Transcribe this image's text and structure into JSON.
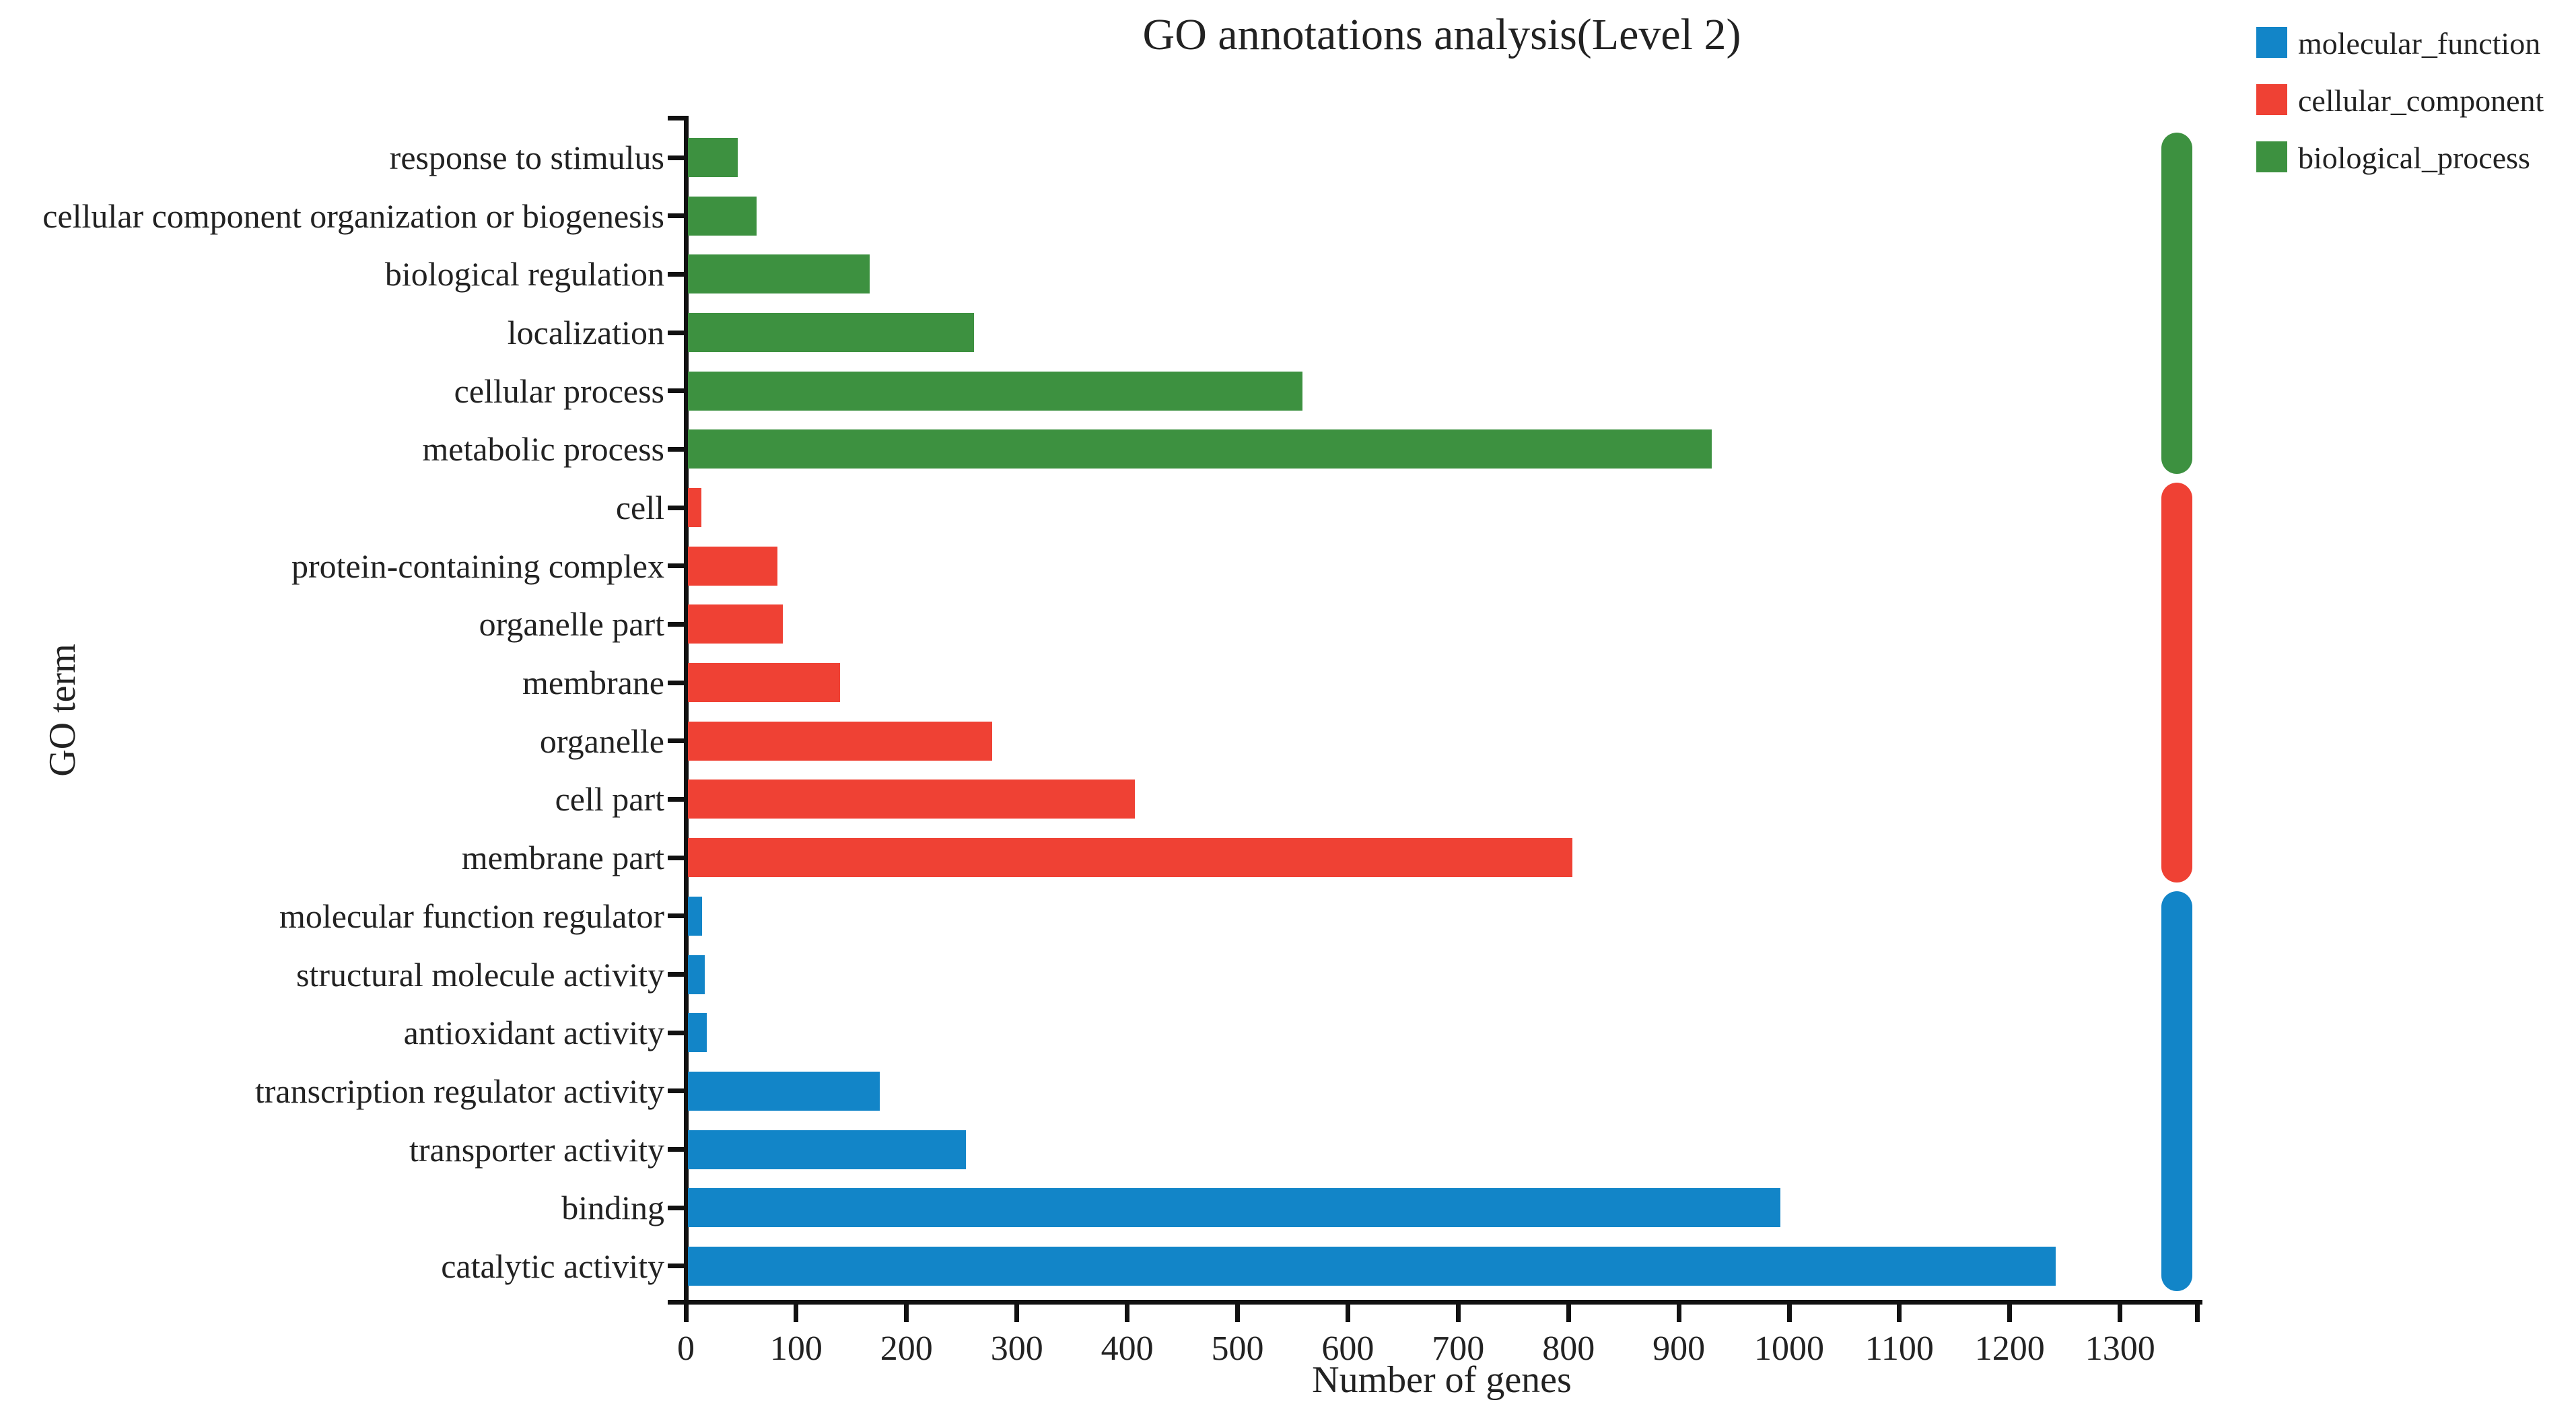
{
  "chart_data": {
    "type": "bar",
    "orientation": "horizontal",
    "title": "GO annotations analysis(Level 2)",
    "xlabel": "Number of genes",
    "ylabel": "GO term",
    "xlim": [
      0,
      1370
    ],
    "xticks": [
      0,
      100,
      200,
      300,
      400,
      500,
      600,
      700,
      800,
      900,
      1000,
      1100,
      1200,
      1300
    ],
    "grid": false,
    "legend_position": "top-right",
    "categories_top_to_bottom": [
      {
        "label": "response to stimulus",
        "value": 45,
        "group": "biological_process"
      },
      {
        "label": "cellular component organization or biogenesis",
        "value": 62,
        "group": "biological_process"
      },
      {
        "label": "biological regulation",
        "value": 165,
        "group": "biological_process"
      },
      {
        "label": "localization",
        "value": 259,
        "group": "biological_process"
      },
      {
        "label": "cellular process",
        "value": 557,
        "group": "biological_process"
      },
      {
        "label": "metabolic process",
        "value": 928,
        "group": "biological_process"
      },
      {
        "label": "cell",
        "value": 12,
        "group": "cellular_component"
      },
      {
        "label": "protein-containing complex",
        "value": 81,
        "group": "cellular_component"
      },
      {
        "label": "organelle part",
        "value": 86,
        "group": "cellular_component"
      },
      {
        "label": "membrane",
        "value": 138,
        "group": "cellular_component"
      },
      {
        "label": "organelle",
        "value": 276,
        "group": "cellular_component"
      },
      {
        "label": "cell part",
        "value": 405,
        "group": "cellular_component"
      },
      {
        "label": "membrane part",
        "value": 802,
        "group": "cellular_component"
      },
      {
        "label": "molecular function regulator",
        "value": 13,
        "group": "molecular_function"
      },
      {
        "label": "structural molecule activity",
        "value": 15,
        "group": "molecular_function"
      },
      {
        "label": "antioxidant activity",
        "value": 17,
        "group": "molecular_function"
      },
      {
        "label": "transcription regulator activity",
        "value": 174,
        "group": "molecular_function"
      },
      {
        "label": "transporter activity",
        "value": 252,
        "group": "molecular_function"
      },
      {
        "label": "binding",
        "value": 990,
        "group": "molecular_function"
      },
      {
        "label": "catalytic activity",
        "value": 1240,
        "group": "molecular_function"
      }
    ],
    "groups": {
      "molecular_function": {
        "color": "#1285c8"
      },
      "cellular_component": {
        "color": "#ef4134"
      },
      "biological_process": {
        "color": "#3d9140"
      }
    }
  },
  "legend": [
    {
      "label": "molecular_function",
      "color": "#1285c8"
    },
    {
      "label": "cellular_component",
      "color": "#ef4134"
    },
    {
      "label": "biological_process",
      "color": "#3d9140"
    }
  ]
}
